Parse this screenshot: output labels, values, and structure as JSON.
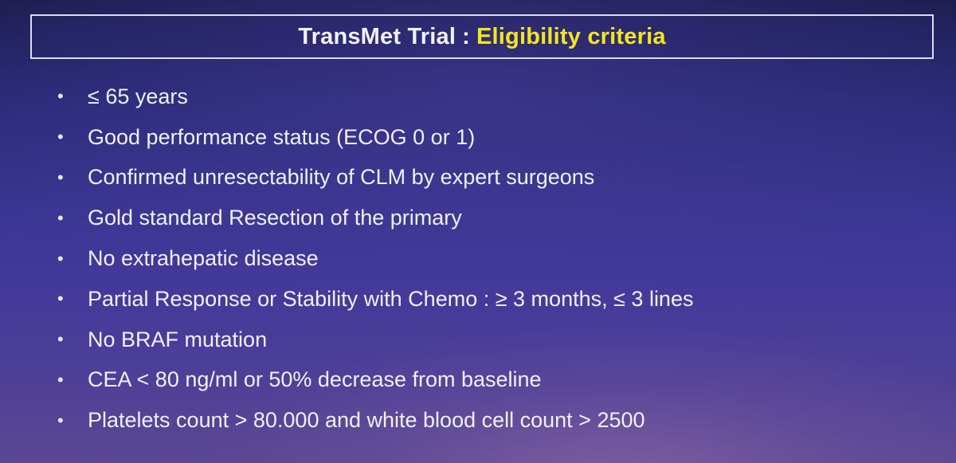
{
  "slide": {
    "title": {
      "main": "TransMet Trial",
      "separator": ":",
      "highlight": "Eligibility criteria"
    },
    "criteria": [
      "≤ 65 years",
      "Good performance status (ECOG 0 or 1)",
      "Confirmed unresectability of CLM by expert surgeons",
      "Gold standard Resection of the primary",
      "No extrahepatic disease",
      "Partial Response or Stability with Chemo : ≥ 3 months, ≤ 3 lines",
      "No BRAF mutation",
      "CEA < 80 ng/ml or 50% decrease from baseline",
      "Platelets count > 80.000 and white blood cell count > 2500"
    ],
    "bullet_glyph": "•"
  },
  "colors": {
    "title_text": "#f1f1f6",
    "title_highlight": "#f2e61c",
    "body_text": "#f0f0f6",
    "background_top": "#1c1c4e",
    "background_bottom": "#5a4893"
  }
}
